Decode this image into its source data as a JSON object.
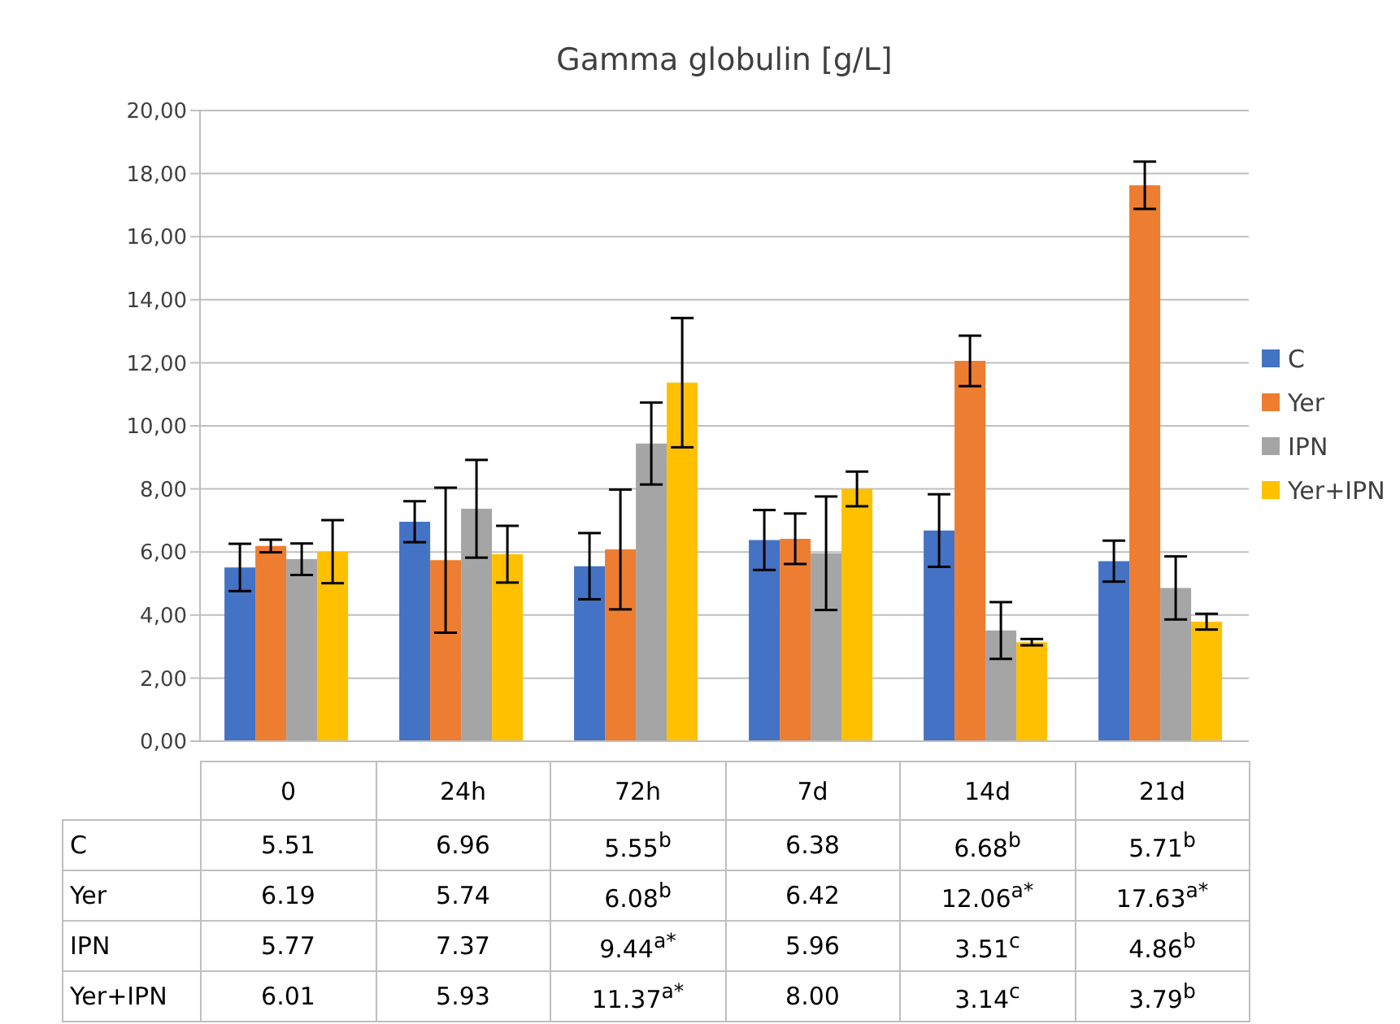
{
  "chart_data": {
    "type": "bar",
    "title": "Gamma globulin  [g/L]",
    "categories": [
      "0",
      "24h",
      "72h",
      "7d",
      "14d",
      "21d"
    ],
    "series": [
      {
        "name": "C",
        "color": "#4472c4",
        "values": [
          5.51,
          6.96,
          5.55,
          6.38,
          6.68,
          5.71
        ],
        "errors": [
          0.75,
          0.65,
          1.05,
          0.95,
          1.15,
          0.65
        ],
        "value_labels": [
          "5.51",
          "6.96",
          "5.55$^{b}$",
          "6.38",
          "6.68$^{b}$",
          "5.71$^{b}$"
        ]
      },
      {
        "name": "Yer",
        "color": "#ed7d31",
        "values": [
          6.19,
          5.74,
          6.08,
          6.42,
          12.06,
          17.63
        ],
        "errors": [
          0.2,
          2.3,
          1.9,
          0.8,
          0.8,
          0.75
        ],
        "value_labels": [
          "6.19",
          "5.74",
          "6.08$^{b}$",
          "6.42",
          "12.06$^{a*}$",
          "17.63$^{a*}$"
        ]
      },
      {
        "name": "IPN",
        "color": "#a5a5a5",
        "values": [
          5.77,
          7.37,
          9.44,
          5.96,
          3.51,
          4.86
        ],
        "errors": [
          0.5,
          1.55,
          1.3,
          1.8,
          0.9,
          1.0
        ],
        "value_labels": [
          "5.77",
          "7.37",
          "9.44$^{a*}$",
          "5.96",
          "3.51$^{c}$",
          "4.86$^{b}$"
        ]
      },
      {
        "name": "Yer+IPN",
        "color": "#ffc000",
        "values": [
          6.01,
          5.93,
          11.37,
          8.0,
          3.14,
          3.79
        ],
        "errors": [
          1.0,
          0.9,
          2.05,
          0.55,
          0.1,
          0.25
        ],
        "value_labels": [
          "6.01",
          "5.93",
          "11.37$^{a*}$",
          "8.00",
          "3.14$^{c}$",
          "3.79$^{b}$"
        ]
      }
    ],
    "ylim": [
      0,
      20
    ],
    "yticks": [
      {
        "value": 0,
        "label": "0,00"
      },
      {
        "value": 2,
        "label": "2,00"
      },
      {
        "value": 4,
        "label": "4,00"
      },
      {
        "value": 6,
        "label": "6,00"
      },
      {
        "value": 8,
        "label": "8,00"
      },
      {
        "value": 10,
        "label": "10,00"
      },
      {
        "value": 12,
        "label": "12,00"
      },
      {
        "value": 14,
        "label": "14,00"
      },
      {
        "value": 16,
        "label": "16,00"
      },
      {
        "value": 18,
        "label": "18,00"
      },
      {
        "value": 20,
        "label": "20,00"
      }
    ],
    "grid": "y",
    "legend": "right"
  }
}
